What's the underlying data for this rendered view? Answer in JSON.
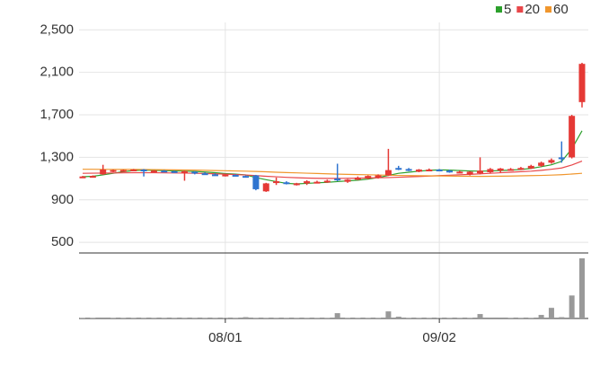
{
  "chart_data": {
    "type": "candlestick",
    "categories": [
      null,
      null,
      null,
      null,
      null,
      null,
      null,
      null,
      null,
      null,
      null,
      null,
      null,
      null,
      "08/01",
      null,
      null,
      null,
      null,
      null,
      null,
      null,
      null,
      null,
      null,
      null,
      null,
      null,
      null,
      null,
      null,
      null,
      null,
      null,
      null,
      "09/02",
      null,
      null,
      null,
      null,
      null,
      null,
      null,
      null,
      null,
      null,
      null,
      null,
      null,
      null
    ],
    "open": [
      1115,
      1120,
      1140,
      1170,
      1172,
      1178,
      1185,
      1172,
      1175,
      1170,
      1165,
      1165,
      1150,
      1140,
      1130,
      1135,
      1125,
      1130,
      980,
      1060,
      1065,
      1045,
      1055,
      1070,
      1070,
      1100,
      1070,
      1090,
      1100,
      1110,
      1130,
      1200,
      1190,
      1165,
      1180,
      1185,
      1175,
      1160,
      1140,
      1150,
      1160,
      1175,
      1185,
      1185,
      1195,
      1220,
      1250,
      1300,
      1300,
      1820
    ],
    "high": [
      1125,
      1130,
      1230,
      1185,
      1185,
      1190,
      1190,
      1180,
      1180,
      1175,
      1175,
      1170,
      1160,
      1150,
      1140,
      1140,
      1130,
      1135,
      1060,
      1110,
      1075,
      1060,
      1085,
      1080,
      1090,
      1240,
      1095,
      1120,
      1130,
      1140,
      1380,
      1220,
      1200,
      1190,
      1195,
      1190,
      1185,
      1175,
      1170,
      1300,
      1200,
      1200,
      1200,
      1210,
      1230,
      1260,
      1290,
      1450,
      1700,
      2190
    ],
    "low": [
      1110,
      1115,
      1135,
      1160,
      1165,
      1170,
      1120,
      1165,
      1165,
      1160,
      1080,
      1140,
      1140,
      1130,
      1120,
      1125,
      1110,
      990,
      975,
      1040,
      1045,
      1035,
      1040,
      1060,
      1060,
      1075,
      1060,
      1085,
      1095,
      1100,
      1125,
      1180,
      1170,
      1160,
      1170,
      1170,
      1155,
      1150,
      1130,
      1140,
      1150,
      1160,
      1175,
      1180,
      1190,
      1210,
      1240,
      1250,
      1290,
      1770
    ],
    "close": [
      1120,
      1125,
      1185,
      1180,
      1180,
      1185,
      1172,
      1175,
      1170,
      1165,
      1170,
      1150,
      1145,
      1135,
      1138,
      1130,
      1120,
      1000,
      1055,
      1075,
      1050,
      1055,
      1075,
      1070,
      1080,
      1085,
      1090,
      1110,
      1125,
      1130,
      1180,
      1190,
      1180,
      1185,
      1185,
      1180,
      1170,
      1165,
      1165,
      1175,
      1190,
      1195,
      1190,
      1200,
      1220,
      1250,
      1275,
      1290,
      1690,
      2180
    ],
    "up_color": "#e53935",
    "down_color": "#2f74d0",
    "ylim": [
      400,
      2570
    ],
    "yticks": [
      500,
      900,
      {
        "value": 1300,
        "label": "1,300"
      },
      {
        "value": 1700,
        "label": "1,700"
      },
      {
        "value": 2100,
        "label": "2,100"
      },
      {
        "value": 2500,
        "label": "2,500"
      }
    ],
    "grid": true,
    "series": [
      {
        "name": "5",
        "color": "#2ca02c",
        "values": [
          1118,
          1122,
          1135,
          1150,
          1165,
          1176,
          1180,
          1178,
          1176,
          1172,
          1170,
          1168,
          1162,
          1156,
          1148,
          1142,
          1135,
          1110,
          1090,
          1072,
          1055,
          1050,
          1055,
          1060,
          1065,
          1072,
          1078,
          1085,
          1095,
          1110,
          1130,
          1150,
          1160,
          1170,
          1178,
          1182,
          1180,
          1176,
          1172,
          1170,
          1172,
          1176,
          1180,
          1186,
          1196,
          1212,
          1230,
          1262,
          1380,
          1550
        ]
      },
      {
        "name": "20",
        "color": "#e8474a",
        "values": [
          1150,
          1151,
          1152,
          1153,
          1154,
          1155,
          1155,
          1155,
          1154,
          1153,
          1152,
          1150,
          1148,
          1145,
          1142,
          1138,
          1134,
          1128,
          1122,
          1117,
          1112,
          1108,
          1105,
          1103,
          1102,
          1102,
          1103,
          1104,
          1106,
          1108,
          1110,
          1113,
          1116,
          1120,
          1124,
          1128,
          1132,
          1136,
          1140,
          1145,
          1150,
          1155,
          1160,
          1165,
          1170,
          1178,
          1188,
          1200,
          1228,
          1265
        ]
      },
      {
        "name": "60",
        "color": "#f0962d",
        "values": [
          1188,
          1188,
          1187,
          1187,
          1186,
          1186,
          1185,
          1184,
          1183,
          1182,
          1181,
          1180,
          1178,
          1176,
          1174,
          1172,
          1170,
          1167,
          1164,
          1160,
          1157,
          1154,
          1151,
          1148,
          1145,
          1142,
          1140,
          1138,
          1136,
          1134,
          1132,
          1130,
          1128,
          1127,
          1126,
          1125,
          1124,
          1123,
          1122,
          1121,
          1122,
          1123,
          1124,
          1126,
          1128,
          1130,
          1133,
          1137,
          1143,
          1150
        ]
      }
    ],
    "volume": {
      "color": "#999999",
      "ylim": [
        0,
        70
      ],
      "values": [
        0.3,
        0.3,
        1,
        0.3,
        0.3,
        0.3,
        0.3,
        0.3,
        0.3,
        0.3,
        0.3,
        0.3,
        0.3,
        0.3,
        0.3,
        0.3,
        1.5,
        0.3,
        0.3,
        0.3,
        0.3,
        0.3,
        0.3,
        0.3,
        0.3,
        6,
        0.3,
        0.3,
        0.3,
        0.3,
        8,
        2,
        0.3,
        0.3,
        0.3,
        0.3,
        0.3,
        0.3,
        0.3,
        5,
        1,
        1,
        0.3,
        0.3,
        0.3,
        4,
        12,
        1.5,
        26,
        68
      ]
    }
  }
}
